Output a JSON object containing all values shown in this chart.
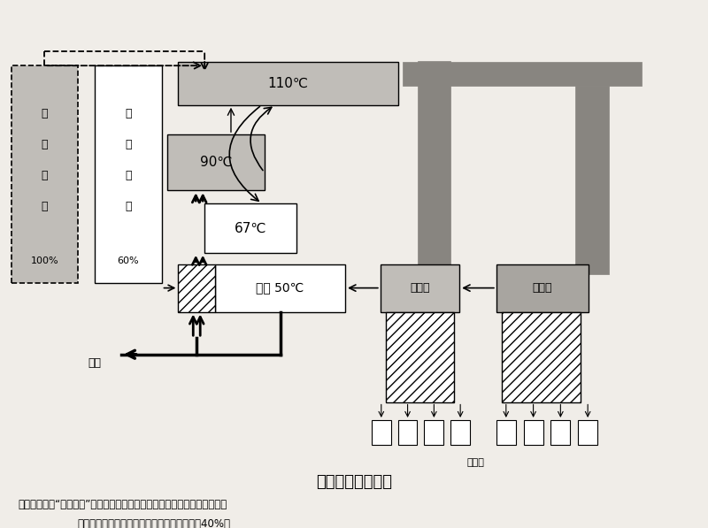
{
  "title": "污水源热泵流程图",
  "note_line1": "注：图中左边“传统锅炉”示意指传统热源供热方式，在相同的供热负荷下，",
  "note_line2": "本方案的锅炉装机容量比传统供热方式减少了40%。",
  "bg_color": "#f0ede8",
  "box_110_label": "110℃",
  "box_90_label": "90℃",
  "box_67_label": "67℃",
  "box_huishui_label": "回汐 50℃",
  "box_huanzhan1_label": "换热站",
  "box_huanzhan2_label": "换热站",
  "box_chuantong_line1": "传",
  "box_chuantong_line2": "统",
  "box_chuantong_line3": "锅",
  "box_chuantong_line4": "炉",
  "box_chuantong_pct": "100%",
  "box_huanbao_line1": "环",
  "box_huanbao_line2": "保",
  "box_huanbao_line3": "锅",
  "box_huanbao_line4": "炉",
  "box_huanbao_pct": "60%",
  "label_zhongshui": "中汐",
  "label_reyonghu": "热用户",
  "gray_light": "#c0bdb8",
  "gray_medium": "#a8a5a0",
  "gray_dark": "#888580",
  "white": "#ffffff"
}
